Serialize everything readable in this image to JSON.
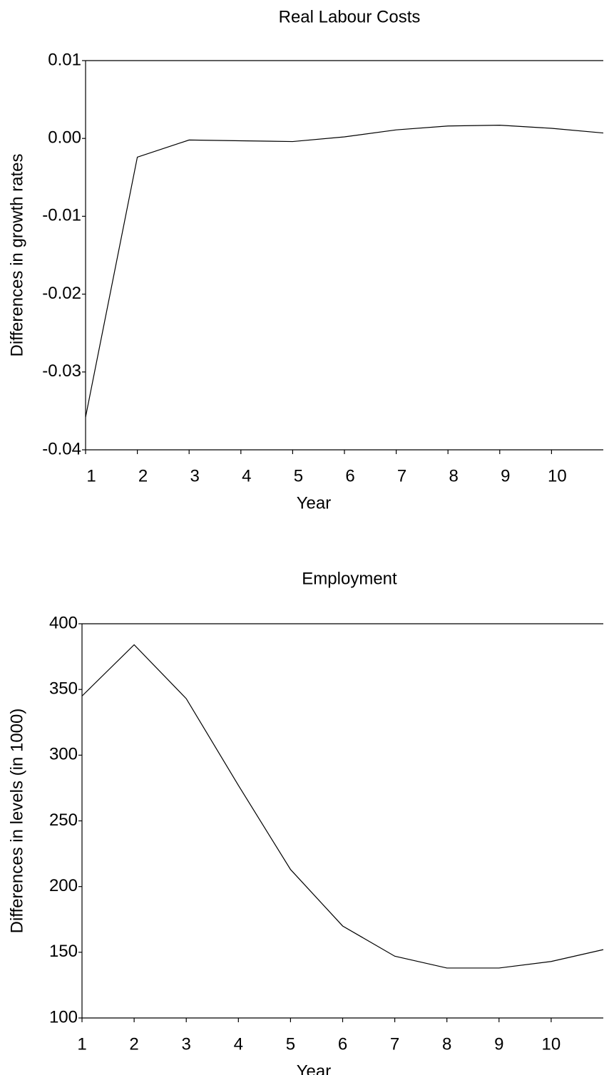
{
  "chart_data": [
    {
      "type": "line",
      "title": "Real Labour Costs",
      "x_label": "Year",
      "y_label": "Differences in growth rates",
      "x": [
        1,
        2,
        3,
        4,
        5,
        6,
        7,
        8,
        9,
        10,
        11
      ],
      "series": [
        {
          "color": "#000000",
          "values": [
            -0.0358,
            -0.0024,
            -0.0002,
            -0.0003,
            -0.0004,
            0.0002,
            0.0011,
            0.0016,
            0.0017,
            0.0013,
            0.0007
          ]
        }
      ],
      "xlim": [
        1,
        11
      ],
      "xticks": [
        1,
        2,
        3,
        4,
        5,
        6,
        7,
        8,
        9,
        10
      ],
      "ylim": [
        -0.04,
        0.01
      ],
      "yticks": [
        -0.04,
        -0.03,
        -0.02,
        -0.01,
        {
          "value": 0,
          "label": "0.00"
        },
        0.01
      ]
    },
    {
      "type": "line",
      "title": "Employment",
      "x_label": "Year",
      "y_label": "Differences in levels (in 1000)",
      "x": [
        1,
        2,
        3,
        4,
        5,
        6,
        7,
        8,
        9,
        10,
        11
      ],
      "series": [
        {
          "color": "#000000",
          "values": [
            345,
            384,
            343,
            277,
            213,
            170,
            147,
            138,
            138,
            143,
            152
          ]
        }
      ],
      "xlim": [
        1,
        11
      ],
      "xticks": [
        1,
        2,
        3,
        4,
        5,
        6,
        7,
        8,
        9,
        10
      ],
      "ylim": [
        100,
        400
      ],
      "yticks": [
        100,
        150,
        200,
        250,
        300,
        350,
        400
      ]
    }
  ]
}
